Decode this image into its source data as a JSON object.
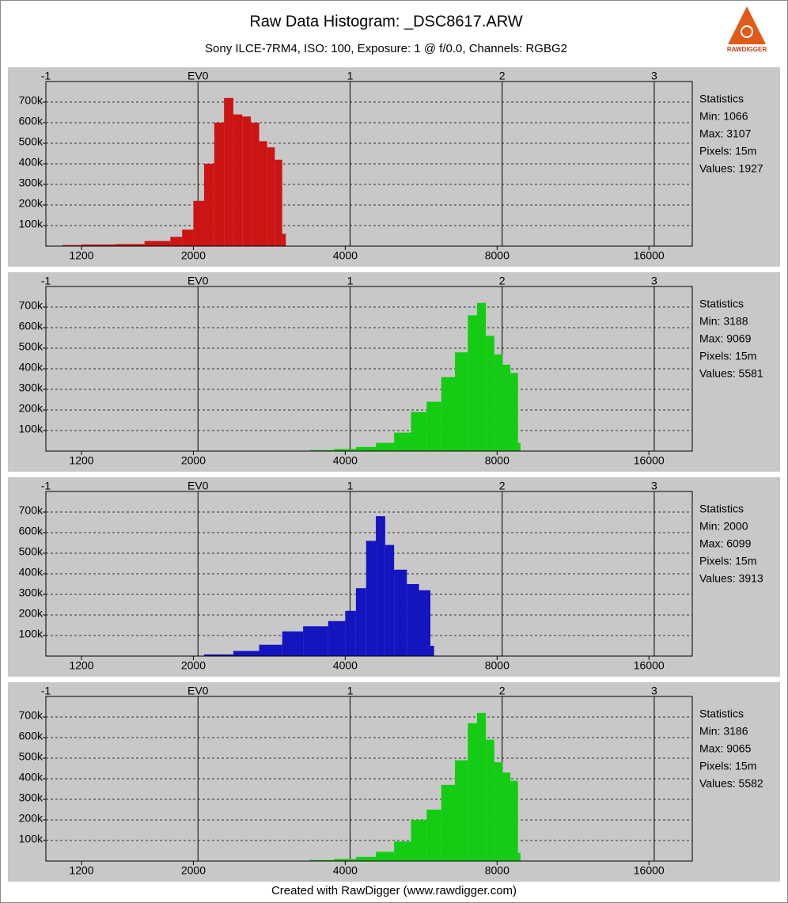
{
  "header": {
    "title": "Raw Data Histogram: _DSC8617.ARW",
    "subtitle": "Sony ILCE-7RM4, ISO: 100, Exposure: 1 @ f/0.0, Channels: RGBG2",
    "logo_text": "RAWDIGGER"
  },
  "footer": "Created with RawDigger (www.rawdigger.com)",
  "chart_data": [
    {
      "type": "histogram",
      "color": "#cc1414",
      "bins": [
        1100,
        1200,
        1400,
        1600,
        1800,
        1900,
        2000,
        2100,
        2200,
        2300,
        2400,
        2500,
        2600,
        2700,
        2800,
        2900,
        3000,
        3050
      ],
      "values": [
        5000,
        8000,
        10000,
        25000,
        45000,
        80000,
        220000,
        400000,
        600000,
        720000,
        640000,
        630000,
        600000,
        510000,
        480000,
        420000,
        60000
      ],
      "xscale": "log",
      "xlim": [
        1020,
        19500
      ],
      "xticks": [
        1200,
        2000,
        4000,
        8000,
        16000
      ],
      "x2lim": [
        -1,
        3.25
      ],
      "x2ticks": [
        -1,
        {
          "value": 0,
          "label": "EV0"
        },
        1,
        2,
        3
      ],
      "ylim": [
        0,
        800000
      ],
      "yticks": [
        {
          "value": 100000,
          "label": "100k"
        },
        {
          "value": 200000,
          "label": "200k"
        },
        {
          "value": 300000,
          "label": "300k"
        },
        {
          "value": 400000,
          "label": "400k"
        },
        {
          "value": 500000,
          "label": "500k"
        },
        {
          "value": 600000,
          "label": "600k"
        },
        {
          "value": 700000,
          "label": "700k"
        }
      ],
      "grid": true,
      "statistics": [
        "Statistics",
        "Min: 1066",
        "Max: 3107",
        "Pixels: 15m",
        "Values: 1927"
      ]
    },
    {
      "type": "histogram",
      "color": "#14cc14",
      "bins": [
        3400,
        3800,
        4200,
        4600,
        5000,
        5400,
        5800,
        6200,
        6600,
        7000,
        7300,
        7600,
        7900,
        8200,
        8500,
        8800,
        8900
      ],
      "values": [
        5000,
        10000,
        20000,
        40000,
        90000,
        190000,
        240000,
        360000,
        480000,
        660000,
        720000,
        560000,
        470000,
        420000,
        380000,
        40000
      ],
      "xscale": "log",
      "xlim": [
        1020,
        19500
      ],
      "xticks": [
        1200,
        2000,
        4000,
        8000,
        16000
      ],
      "x2lim": [
        -1,
        3.25
      ],
      "x2ticks": [
        -1,
        {
          "value": 0,
          "label": "EV0"
        },
        1,
        2,
        3
      ],
      "ylim": [
        0,
        800000
      ],
      "yticks": [
        {
          "value": 100000,
          "label": "100k"
        },
        {
          "value": 200000,
          "label": "200k"
        },
        {
          "value": 300000,
          "label": "300k"
        },
        {
          "value": 400000,
          "label": "400k"
        },
        {
          "value": 500000,
          "label": "500k"
        },
        {
          "value": 600000,
          "label": "600k"
        },
        {
          "value": 700000,
          "label": "700k"
        }
      ],
      "grid": true,
      "statistics": [
        "Statistics",
        "Min: 3188",
        "Max: 9069",
        "Pixels: 15m",
        "Values: 5581"
      ]
    },
    {
      "type": "histogram",
      "color": "#1414c0",
      "bins": [
        2100,
        2400,
        2700,
        3000,
        3300,
        3700,
        4000,
        4200,
        4400,
        4600,
        4800,
        5000,
        5300,
        5600,
        5900,
        6000
      ],
      "values": [
        8000,
        25000,
        55000,
        120000,
        145000,
        170000,
        220000,
        330000,
        560000,
        680000,
        540000,
        420000,
        350000,
        320000,
        50000
      ],
      "xscale": "log",
      "xlim": [
        1020,
        19500
      ],
      "xticks": [
        1200,
        2000,
        4000,
        8000,
        16000
      ],
      "x2lim": [
        -1,
        3.25
      ],
      "x2ticks": [
        -1,
        {
          "value": 0,
          "label": "EV0"
        },
        1,
        2,
        3
      ],
      "ylim": [
        0,
        800000
      ],
      "yticks": [
        {
          "value": 100000,
          "label": "100k"
        },
        {
          "value": 200000,
          "label": "200k"
        },
        {
          "value": 300000,
          "label": "300k"
        },
        {
          "value": 400000,
          "label": "400k"
        },
        {
          "value": 500000,
          "label": "500k"
        },
        {
          "value": 600000,
          "label": "600k"
        },
        {
          "value": 700000,
          "label": "700k"
        }
      ],
      "grid": true,
      "statistics": [
        "Statistics",
        "Min: 2000",
        "Max: 6099",
        "Pixels: 15m",
        "Values: 3913"
      ]
    },
    {
      "type": "histogram",
      "color": "#14cc14",
      "bins": [
        3400,
        3800,
        4200,
        4600,
        5000,
        5400,
        5800,
        6200,
        6600,
        7000,
        7300,
        7600,
        7900,
        8200,
        8500,
        8800,
        8900
      ],
      "values": [
        5000,
        10000,
        20000,
        45000,
        95000,
        200000,
        250000,
        370000,
        490000,
        670000,
        720000,
        590000,
        480000,
        430000,
        390000,
        40000
      ],
      "xscale": "log",
      "xlim": [
        1020,
        19500
      ],
      "xticks": [
        1200,
        2000,
        4000,
        8000,
        16000
      ],
      "x2lim": [
        -1,
        3.25
      ],
      "x2ticks": [
        -1,
        {
          "value": 0,
          "label": "EV0"
        },
        1,
        2,
        3
      ],
      "ylim": [
        0,
        800000
      ],
      "yticks": [
        {
          "value": 100000,
          "label": "100k"
        },
        {
          "value": 200000,
          "label": "200k"
        },
        {
          "value": 300000,
          "label": "300k"
        },
        {
          "value": 400000,
          "label": "400k"
        },
        {
          "value": 500000,
          "label": "500k"
        },
        {
          "value": 600000,
          "label": "600k"
        },
        {
          "value": 700000,
          "label": "700k"
        }
      ],
      "grid": true,
      "statistics": [
        "Statistics",
        "Min: 3186",
        "Max: 9065",
        "Pixels: 15m",
        "Values: 5582"
      ]
    }
  ]
}
